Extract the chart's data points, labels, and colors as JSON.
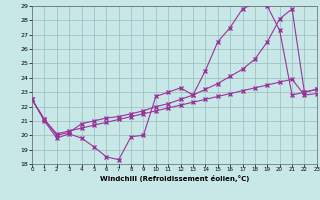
{
  "bg_color": "#c8e8e8",
  "grid_color": "#99bbbb",
  "line_color": "#993399",
  "xlim": [
    0,
    23
  ],
  "ylim": [
    18,
    29
  ],
  "xticks": [
    0,
    1,
    2,
    3,
    4,
    5,
    6,
    7,
    8,
    9,
    10,
    11,
    12,
    13,
    14,
    15,
    16,
    17,
    18,
    19,
    20,
    21,
    22,
    23
  ],
  "yticks": [
    18,
    19,
    20,
    21,
    22,
    23,
    24,
    25,
    26,
    27,
    28,
    29
  ],
  "xlabel": "Windchill (Refroidissement éolien,°C)",
  "line1_x": [
    0,
    1,
    2,
    3,
    4,
    5,
    6,
    7,
    8,
    9,
    10,
    11,
    12,
    13,
    14,
    15,
    16,
    17,
    18,
    19,
    20,
    21,
    22,
    23
  ],
  "line1_y": [
    22.5,
    21.0,
    19.8,
    20.1,
    19.8,
    19.2,
    18.5,
    18.3,
    19.9,
    20.0,
    22.7,
    23.0,
    23.3,
    22.8,
    24.5,
    26.5,
    27.5,
    28.8,
    29.2,
    29.0,
    27.3,
    22.8,
    23.0,
    23.2
  ],
  "line2_x": [
    0,
    1,
    2,
    3,
    4,
    5,
    6,
    7,
    8,
    9,
    10,
    11,
    12,
    13,
    14,
    15,
    16,
    17,
    18,
    19,
    20,
    21,
    22,
    23
  ],
  "line2_y": [
    22.5,
    21.1,
    20.0,
    20.2,
    20.8,
    21.0,
    21.2,
    21.3,
    21.5,
    21.7,
    22.0,
    22.2,
    22.5,
    22.8,
    23.2,
    23.6,
    24.1,
    24.6,
    25.3,
    26.5,
    28.1,
    28.8,
    23.0,
    23.2
  ],
  "line3_x": [
    0,
    1,
    2,
    3,
    4,
    5,
    6,
    7,
    8,
    9,
    10,
    11,
    12,
    13,
    14,
    15,
    16,
    17,
    18,
    19,
    20,
    21,
    22,
    23
  ],
  "line3_y": [
    22.5,
    21.1,
    20.1,
    20.3,
    20.5,
    20.7,
    20.9,
    21.1,
    21.3,
    21.5,
    21.7,
    21.9,
    22.1,
    22.3,
    22.5,
    22.7,
    22.9,
    23.1,
    23.3,
    23.5,
    23.7,
    23.9,
    22.8,
    22.9
  ]
}
